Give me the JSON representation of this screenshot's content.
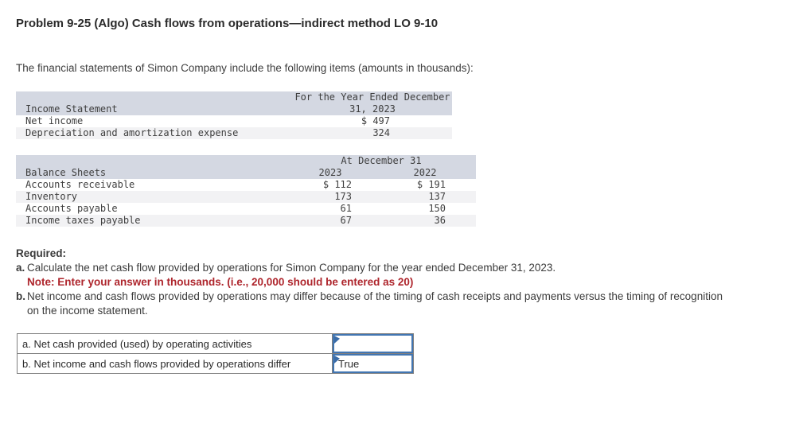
{
  "page": {
    "title": "Problem 9-25 (Algo) Cash flows from operations—indirect method LO 9-10",
    "intro": "The financial statements of Simon Company include the following items (amounts in thousands):"
  },
  "income_statement_table": {
    "header_left": "Income Statement",
    "header_right": "For the Year Ended December 31, 2023",
    "rows": [
      {
        "label": "Net income",
        "value": "$ 497"
      },
      {
        "label": "Depreciation and amortization expense",
        "value": "324"
      }
    ]
  },
  "balance_sheet_table": {
    "header_left": "Balance Sheets",
    "header_span": "At December 31",
    "col_2023": "2023",
    "col_2022": "2022",
    "rows": [
      {
        "label": "Accounts receivable",
        "y2023": "$ 112",
        "y2022": "$ 191"
      },
      {
        "label": "Inventory",
        "y2023": "173",
        "y2022": "137"
      },
      {
        "label": "Accounts payable",
        "y2023": "61",
        "y2022": "150"
      },
      {
        "label": "Income taxes payable",
        "y2023": "67",
        "y2022": "36"
      }
    ]
  },
  "required": {
    "heading": "Required:",
    "item_a_prefix": "a.",
    "item_a_text": "Calculate the net cash flow provided by operations for Simon Company for the year ended December 31, 2023.",
    "note": "Note: Enter your answer in thousands. (i.e., 20,000 should be entered as 20)",
    "item_b_prefix": "b.",
    "item_b_text": "Net income and cash flows provided by operations may differ because of the timing of cash receipts and payments versus the timing of recognition on the income statement."
  },
  "answer_table": {
    "rows": [
      {
        "label": "a. Net cash provided (used) by operating activities",
        "value": ""
      },
      {
        "label": "b. Net income and cash flows provided by operations differ",
        "value": "True"
      }
    ]
  },
  "colors": {
    "table_header_bg": "#d4d8e2",
    "row_stripe_bg": "#f2f2f4",
    "note_red": "#ae252c",
    "input_border_blue": "#4276b2",
    "answer_border_gray": "#808080"
  }
}
